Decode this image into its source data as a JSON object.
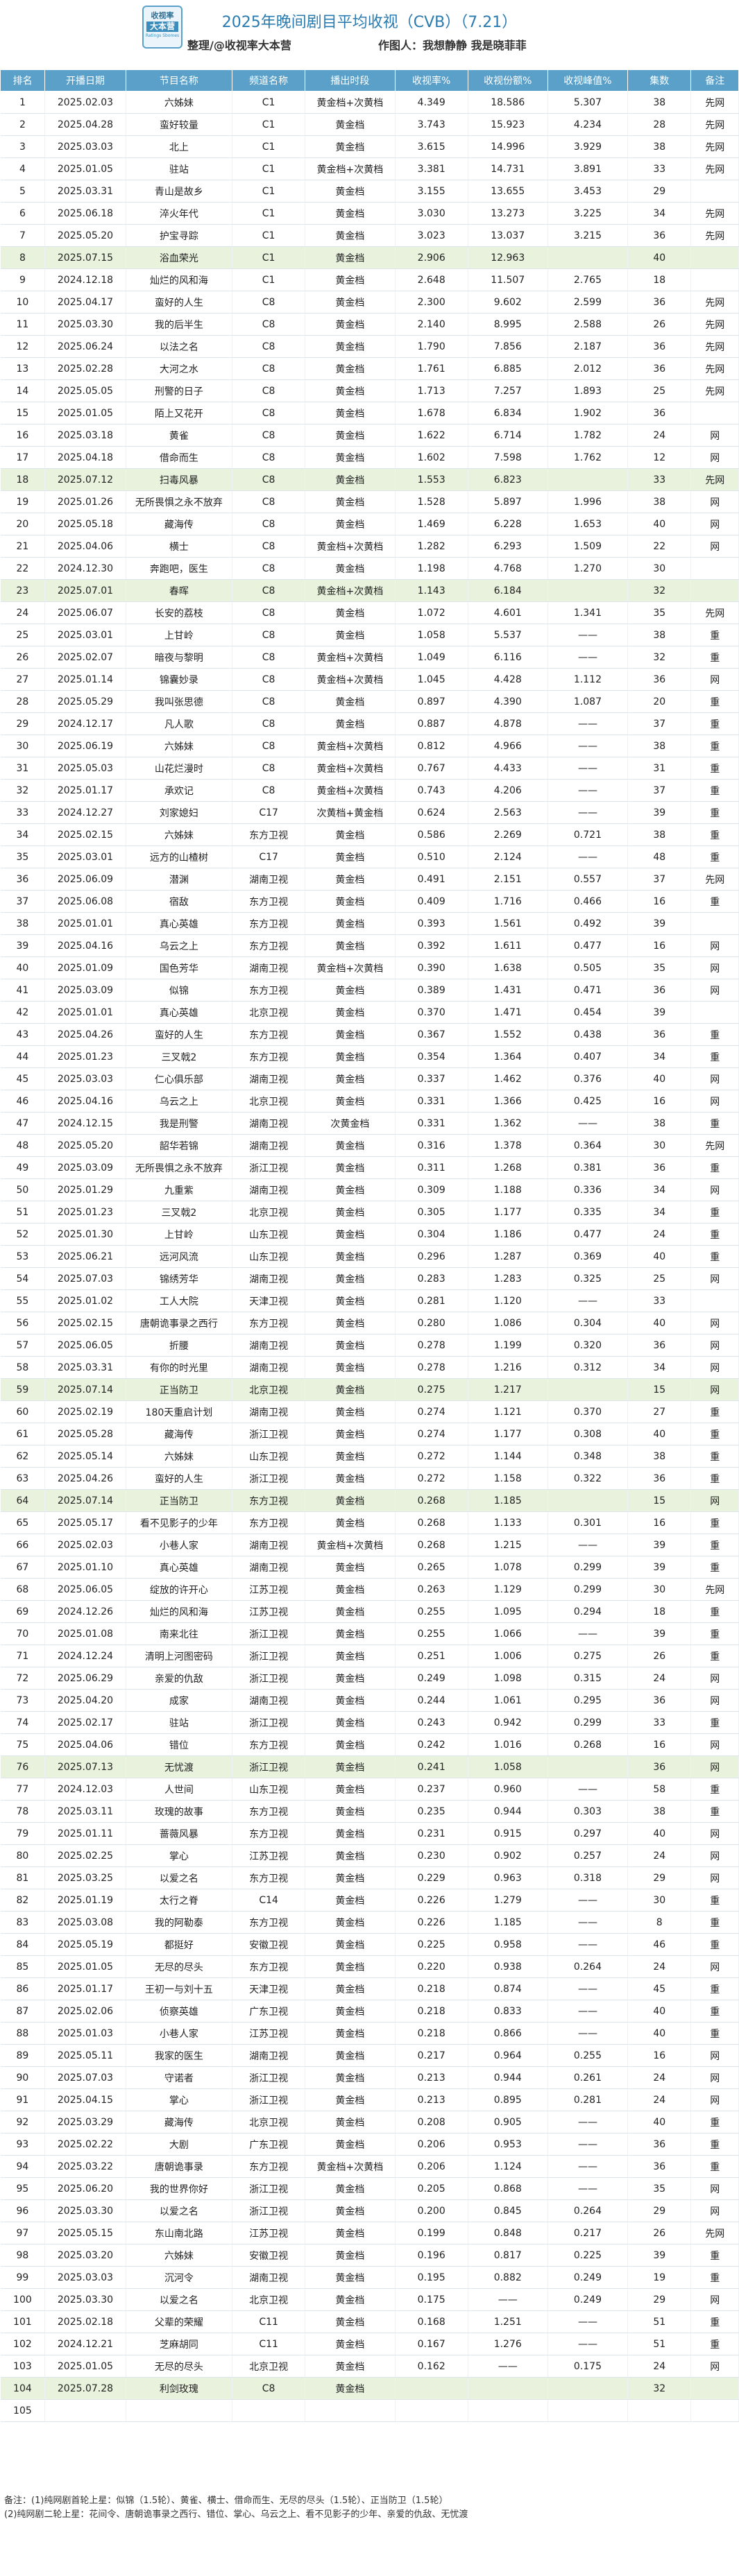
{
  "logo": {
    "line1": "收视率",
    "line2": "大本营",
    "line3": "Ratings Sbomes"
  },
  "header": {
    "title": "2025年晚间剧目平均收视（CVB）（7.21）",
    "compiler": "整理/@收视率大本营",
    "author": "作图人：我想静静  我是晓菲菲"
  },
  "columns": [
    "排名",
    "开播日期",
    "节目名称",
    "频道名称",
    "播出时段",
    "收视率%",
    "收视份额%",
    "收视峰值%",
    "集数",
    "备注"
  ],
  "colors": {
    "header_bg": "#5aa0c8",
    "highlight_row": "#e8f2dc",
    "title": "#2a7bb0"
  },
  "highlight_rows": [
    8,
    18,
    23,
    59,
    64,
    76,
    104
  ],
  "rows": [
    [
      "1",
      "2025.02.03",
      "六姊妹",
      "C1",
      "黄金档+次黄档",
      "4.349",
      "18.586",
      "5.307",
      "38",
      "先网"
    ],
    [
      "2",
      "2025.04.28",
      "蛮好较量",
      "C1",
      "黄金档",
      "3.743",
      "15.923",
      "4.234",
      "28",
      "先网"
    ],
    [
      "3",
      "2025.03.03",
      "北上",
      "C1",
      "黄金档",
      "3.615",
      "14.996",
      "3.929",
      "38",
      "先网"
    ],
    [
      "4",
      "2025.01.05",
      "驻站",
      "C1",
      "黄金档+次黄档",
      "3.381",
      "14.731",
      "3.891",
      "33",
      "先网"
    ],
    [
      "5",
      "2025.03.31",
      "青山是故乡",
      "C1",
      "黄金档",
      "3.155",
      "13.655",
      "3.453",
      "29",
      ""
    ],
    [
      "6",
      "2025.06.18",
      "淬火年代",
      "C1",
      "黄金档",
      "3.030",
      "13.273",
      "3.225",
      "34",
      "先网"
    ],
    [
      "7",
      "2025.05.20",
      "护宝寻踪",
      "C1",
      "黄金档",
      "3.023",
      "13.037",
      "3.215",
      "36",
      "先网"
    ],
    [
      "8",
      "2025.07.15",
      "浴血荣光",
      "C1",
      "黄金档",
      "2.906",
      "12.963",
      "",
      "40",
      ""
    ],
    [
      "9",
      "2024.12.18",
      "灿烂的风和海",
      "C1",
      "黄金档",
      "2.648",
      "11.507",
      "2.765",
      "18",
      ""
    ],
    [
      "10",
      "2025.04.17",
      "蛮好的人生",
      "C8",
      "黄金档",
      "2.300",
      "9.602",
      "2.599",
      "36",
      "先网"
    ],
    [
      "11",
      "2025.03.30",
      "我的后半生",
      "C8",
      "黄金档",
      "2.140",
      "8.995",
      "2.588",
      "26",
      "先网"
    ],
    [
      "12",
      "2025.06.24",
      "以法之名",
      "C8",
      "黄金档",
      "1.790",
      "7.856",
      "2.187",
      "36",
      "先网"
    ],
    [
      "13",
      "2025.02.28",
      "大河之水",
      "C8",
      "黄金档",
      "1.761",
      "6.885",
      "2.012",
      "36",
      "先网"
    ],
    [
      "14",
      "2025.05.05",
      "刑警的日子",
      "C8",
      "黄金档",
      "1.713",
      "7.257",
      "1.893",
      "25",
      "先网"
    ],
    [
      "15",
      "2025.01.05",
      "陌上又花开",
      "C8",
      "黄金档",
      "1.678",
      "6.834",
      "1.902",
      "36",
      ""
    ],
    [
      "16",
      "2025.03.18",
      "黄雀",
      "C8",
      "黄金档",
      "1.622",
      "6.714",
      "1.782",
      "24",
      "网"
    ],
    [
      "17",
      "2025.04.18",
      "借命而生",
      "C8",
      "黄金档",
      "1.602",
      "7.598",
      "1.762",
      "12",
      "网"
    ],
    [
      "18",
      "2025.07.12",
      "扫毒风暴",
      "C8",
      "黄金档",
      "1.553",
      "6.823",
      "",
      "33",
      "先网"
    ],
    [
      "19",
      "2025.01.26",
      "无所畏惧之永不放弃",
      "C8",
      "黄金档",
      "1.528",
      "5.897",
      "1.996",
      "38",
      "网"
    ],
    [
      "20",
      "2025.05.18",
      "藏海传",
      "C8",
      "黄金档",
      "1.469",
      "6.228",
      "1.653",
      "40",
      "网"
    ],
    [
      "21",
      "2025.04.06",
      "横士",
      "C8",
      "黄金档+次黄档",
      "1.282",
      "6.293",
      "1.509",
      "22",
      "网"
    ],
    [
      "22",
      "2024.12.30",
      "奔跑吧，医生",
      "C8",
      "黄金档",
      "1.198",
      "4.768",
      "1.270",
      "30",
      ""
    ],
    [
      "23",
      "2025.07.01",
      "春晖",
      "C8",
      "黄金档+次黄档",
      "1.143",
      "6.184",
      "",
      "32",
      ""
    ],
    [
      "24",
      "2025.06.07",
      "长安的荔枝",
      "C8",
      "黄金档",
      "1.072",
      "4.601",
      "1.341",
      "35",
      "先网"
    ],
    [
      "25",
      "2025.03.01",
      "上甘岭",
      "C8",
      "黄金档",
      "1.058",
      "5.537",
      "——",
      "38",
      "重"
    ],
    [
      "26",
      "2025.02.07",
      "暗夜与黎明",
      "C8",
      "黄金档+次黄档",
      "1.049",
      "6.116",
      "——",
      "32",
      "重"
    ],
    [
      "27",
      "2025.01.14",
      "锦囊妙录",
      "C8",
      "黄金档+次黄档",
      "1.045",
      "4.428",
      "1.112",
      "36",
      "网"
    ],
    [
      "28",
      "2025.05.29",
      "我叫张思德",
      "C8",
      "黄金档",
      "0.897",
      "4.390",
      "1.087",
      "20",
      "重"
    ],
    [
      "29",
      "2024.12.17",
      "凡人歌",
      "C8",
      "黄金档",
      "0.887",
      "4.878",
      "——",
      "37",
      "重"
    ],
    [
      "30",
      "2025.06.19",
      "六姊妹",
      "C8",
      "黄金档+次黄档",
      "0.812",
      "4.966",
      "——",
      "38",
      "重"
    ],
    [
      "31",
      "2025.05.03",
      "山花烂漫时",
      "C8",
      "黄金档+次黄档",
      "0.767",
      "4.433",
      "——",
      "31",
      "重"
    ],
    [
      "32",
      "2025.01.17",
      "承欢记",
      "C8",
      "黄金档+次黄档",
      "0.743",
      "4.206",
      "——",
      "37",
      "重"
    ],
    [
      "33",
      "2024.12.27",
      "刘家媳妇",
      "C17",
      "次黄档+黄金档",
      "0.624",
      "2.563",
      "——",
      "39",
      "重"
    ],
    [
      "34",
      "2025.02.15",
      "六姊妹",
      "东方卫视",
      "黄金档",
      "0.586",
      "2.269",
      "0.721",
      "38",
      "重"
    ],
    [
      "35",
      "2025.03.01",
      "远方的山楂树",
      "C17",
      "黄金档",
      "0.510",
      "2.124",
      "——",
      "48",
      "重"
    ],
    [
      "36",
      "2025.06.09",
      "潜渊",
      "湖南卫视",
      "黄金档",
      "0.491",
      "2.151",
      "0.557",
      "37",
      "先网"
    ],
    [
      "37",
      "2025.06.08",
      "宿敌",
      "东方卫视",
      "黄金档",
      "0.409",
      "1.716",
      "0.466",
      "16",
      "重"
    ],
    [
      "38",
      "2025.01.01",
      "真心英雄",
      "东方卫视",
      "黄金档",
      "0.393",
      "1.561",
      "0.492",
      "39",
      ""
    ],
    [
      "39",
      "2025.04.16",
      "乌云之上",
      "东方卫视",
      "黄金档",
      "0.392",
      "1.611",
      "0.477",
      "16",
      "网"
    ],
    [
      "40",
      "2025.01.09",
      "国色芳华",
      "湖南卫视",
      "黄金档+次黄档",
      "0.390",
      "1.638",
      "0.505",
      "35",
      "网"
    ],
    [
      "41",
      "2025.03.09",
      "似锦",
      "东方卫视",
      "黄金档",
      "0.389",
      "1.431",
      "0.471",
      "36",
      "网"
    ],
    [
      "42",
      "2025.01.01",
      "真心英雄",
      "北京卫视",
      "黄金档",
      "0.370",
      "1.471",
      "0.454",
      "39",
      ""
    ],
    [
      "43",
      "2025.04.26",
      "蛮好的人生",
      "东方卫视",
      "黄金档",
      "0.367",
      "1.552",
      "0.438",
      "36",
      "重"
    ],
    [
      "44",
      "2025.01.23",
      "三叉戟2",
      "东方卫视",
      "黄金档",
      "0.354",
      "1.364",
      "0.407",
      "34",
      "重"
    ],
    [
      "45",
      "2025.03.03",
      "仁心俱乐部",
      "湖南卫视",
      "黄金档",
      "0.337",
      "1.462",
      "0.376",
      "40",
      "网"
    ],
    [
      "46",
      "2025.04.16",
      "乌云之上",
      "北京卫视",
      "黄金档",
      "0.331",
      "1.366",
      "0.425",
      "16",
      "网"
    ],
    [
      "47",
      "2024.12.15",
      "我是刑警",
      "湖南卫视",
      "次黄金档",
      "0.331",
      "1.362",
      "——",
      "38",
      "重"
    ],
    [
      "48",
      "2025.05.20",
      "韶华若锦",
      "湖南卫视",
      "黄金档",
      "0.316",
      "1.378",
      "0.364",
      "30",
      "先网"
    ],
    [
      "49",
      "2025.03.09",
      "无所畏惧之永不放弃",
      "浙江卫视",
      "黄金档",
      "0.311",
      "1.268",
      "0.381",
      "36",
      "重"
    ],
    [
      "50",
      "2025.01.29",
      "九重紫",
      "湖南卫视",
      "黄金档",
      "0.309",
      "1.188",
      "0.336",
      "34",
      "网"
    ],
    [
      "51",
      "2025.01.23",
      "三叉戟2",
      "北京卫视",
      "黄金档",
      "0.305",
      "1.177",
      "0.335",
      "34",
      "重"
    ],
    [
      "52",
      "2025.01.30",
      "上甘岭",
      "山东卫视",
      "黄金档",
      "0.304",
      "1.186",
      "0.477",
      "24",
      "重"
    ],
    [
      "53",
      "2025.06.21",
      "远河风流",
      "山东卫视",
      "黄金档",
      "0.296",
      "1.287",
      "0.369",
      "40",
      "重"
    ],
    [
      "54",
      "2025.07.03",
      "锦绣芳华",
      "湖南卫视",
      "黄金档",
      "0.283",
      "1.283",
      "0.325",
      "25",
      "网"
    ],
    [
      "55",
      "2025.01.02",
      "工人大院",
      "天津卫视",
      "黄金档",
      "0.281",
      "1.120",
      "——",
      "33",
      ""
    ],
    [
      "56",
      "2025.02.15",
      "唐朝诡事录之西行",
      "东方卫视",
      "黄金档",
      "0.280",
      "1.086",
      "0.304",
      "40",
      "网"
    ],
    [
      "57",
      "2025.06.05",
      "折腰",
      "湖南卫视",
      "黄金档",
      "0.278",
      "1.199",
      "0.320",
      "36",
      "网"
    ],
    [
      "58",
      "2025.03.31",
      "有你的时光里",
      "湖南卫视",
      "黄金档",
      "0.278",
      "1.216",
      "0.312",
      "34",
      "网"
    ],
    [
      "59",
      "2025.07.14",
      "正当防卫",
      "北京卫视",
      "黄金档",
      "0.275",
      "1.217",
      "",
      "15",
      "网"
    ],
    [
      "60",
      "2025.02.19",
      "180天重启计划",
      "湖南卫视",
      "黄金档",
      "0.274",
      "1.121",
      "0.370",
      "27",
      "重"
    ],
    [
      "61",
      "2025.05.28",
      "藏海传",
      "浙江卫视",
      "黄金档",
      "0.274",
      "1.177",
      "0.308",
      "40",
      "重"
    ],
    [
      "62",
      "2025.05.14",
      "六姊妹",
      "山东卫视",
      "黄金档",
      "0.272",
      "1.144",
      "0.348",
      "38",
      "重"
    ],
    [
      "63",
      "2025.04.26",
      "蛮好的人生",
      "浙江卫视",
      "黄金档",
      "0.272",
      "1.158",
      "0.322",
      "36",
      "重"
    ],
    [
      "64",
      "2025.07.14",
      "正当防卫",
      "东方卫视",
      "黄金档",
      "0.268",
      "1.185",
      "",
      "15",
      "网"
    ],
    [
      "65",
      "2025.05.17",
      "看不见影子的少年",
      "东方卫视",
      "黄金档",
      "0.268",
      "1.133",
      "0.301",
      "16",
      "重"
    ],
    [
      "66",
      "2025.02.03",
      "小巷人家",
      "湖南卫视",
      "黄金档+次黄档",
      "0.268",
      "1.215",
      "——",
      "39",
      "重"
    ],
    [
      "67",
      "2025.01.10",
      "真心英雄",
      "湖南卫视",
      "黄金档",
      "0.265",
      "1.078",
      "0.299",
      "39",
      "重"
    ],
    [
      "68",
      "2025.06.05",
      "绽放的许开心",
      "江苏卫视",
      "黄金档",
      "0.263",
      "1.129",
      "0.299",
      "30",
      "先网"
    ],
    [
      "69",
      "2024.12.26",
      "灿烂的风和海",
      "江苏卫视",
      "黄金档",
      "0.255",
      "1.095",
      "0.294",
      "18",
      "重"
    ],
    [
      "70",
      "2025.01.08",
      "南来北往",
      "浙江卫视",
      "黄金档",
      "0.255",
      "1.066",
      "——",
      "39",
      "重"
    ],
    [
      "71",
      "2024.12.24",
      "清明上河图密码",
      "浙江卫视",
      "黄金档",
      "0.251",
      "1.006",
      "0.275",
      "26",
      "重"
    ],
    [
      "72",
      "2025.06.29",
      "亲爱的仇敌",
      "浙江卫视",
      "黄金档",
      "0.249",
      "1.098",
      "0.315",
      "24",
      "网"
    ],
    [
      "73",
      "2025.04.20",
      "成家",
      "湖南卫视",
      "黄金档",
      "0.244",
      "1.061",
      "0.295",
      "36",
      "网"
    ],
    [
      "74",
      "2025.02.17",
      "驻站",
      "浙江卫视",
      "黄金档",
      "0.243",
      "0.942",
      "0.299",
      "33",
      "重"
    ],
    [
      "75",
      "2025.04.06",
      "错位",
      "东方卫视",
      "黄金档",
      "0.242",
      "1.016",
      "0.268",
      "16",
      "网"
    ],
    [
      "76",
      "2025.07.13",
      "无忧渡",
      "浙江卫视",
      "黄金档",
      "0.241",
      "1.058",
      "",
      "36",
      "网"
    ],
    [
      "77",
      "2024.12.03",
      "人世间",
      "山东卫视",
      "黄金档",
      "0.237",
      "0.960",
      "——",
      "58",
      "重"
    ],
    [
      "78",
      "2025.03.11",
      "玫瑰的故事",
      "东方卫视",
      "黄金档",
      "0.235",
      "0.944",
      "0.303",
      "38",
      "重"
    ],
    [
      "79",
      "2025.01.11",
      "蔷薇风暴",
      "东方卫视",
      "黄金档",
      "0.231",
      "0.915",
      "0.297",
      "40",
      "网"
    ],
    [
      "80",
      "2025.02.25",
      "掌心",
      "江苏卫视",
      "黄金档",
      "0.230",
      "0.902",
      "0.257",
      "24",
      "网"
    ],
    [
      "81",
      "2025.03.25",
      "以爱之名",
      "东方卫视",
      "黄金档",
      "0.229",
      "0.963",
      "0.318",
      "29",
      "网"
    ],
    [
      "82",
      "2025.01.19",
      "太行之脊",
      "C14",
      "黄金档",
      "0.226",
      "1.279",
      "——",
      "30",
      "重"
    ],
    [
      "83",
      "2025.03.08",
      "我的阿勒泰",
      "东方卫视",
      "黄金档",
      "0.226",
      "1.185",
      "——",
      "8",
      "重"
    ],
    [
      "84",
      "2025.05.19",
      "都挺好",
      "安徽卫视",
      "黄金档",
      "0.225",
      "0.958",
      "——",
      "46",
      "重"
    ],
    [
      "85",
      "2025.01.05",
      "无尽的尽头",
      "东方卫视",
      "黄金档",
      "0.220",
      "0.938",
      "0.264",
      "24",
      "网"
    ],
    [
      "86",
      "2025.01.17",
      "王初一与刘十五",
      "天津卫视",
      "黄金档",
      "0.218",
      "0.874",
      "——",
      "45",
      "重"
    ],
    [
      "87",
      "2025.02.06",
      "侦察英雄",
      "广东卫视",
      "黄金档",
      "0.218",
      "0.833",
      "——",
      "40",
      "重"
    ],
    [
      "88",
      "2025.01.03",
      "小巷人家",
      "江苏卫视",
      "黄金档",
      "0.218",
      "0.866",
      "——",
      "40",
      "重"
    ],
    [
      "89",
      "2025.05.11",
      "我家的医生",
      "湖南卫视",
      "黄金档",
      "0.217",
      "0.964",
      "0.255",
      "16",
      "网"
    ],
    [
      "90",
      "2025.07.03",
      "守诺者",
      "浙江卫视",
      "黄金档",
      "0.213",
      "0.944",
      "0.261",
      "24",
      "网"
    ],
    [
      "91",
      "2025.04.15",
      "掌心",
      "浙江卫视",
      "黄金档",
      "0.213",
      "0.895",
      "0.281",
      "24",
      "网"
    ],
    [
      "92",
      "2025.03.29",
      "藏海传",
      "北京卫视",
      "黄金档",
      "0.208",
      "0.905",
      "——",
      "40",
      "重"
    ],
    [
      "93",
      "2025.02.22",
      "大剧",
      "广东卫视",
      "黄金档",
      "0.206",
      "0.953",
      "——",
      "36",
      "重"
    ],
    [
      "94",
      "2025.03.22",
      "唐朝诡事录",
      "东方卫视",
      "黄金档+次黄档",
      "0.206",
      "1.124",
      "——",
      "36",
      "重"
    ],
    [
      "95",
      "2025.06.20",
      "我的世界你好",
      "浙江卫视",
      "黄金档",
      "0.205",
      "0.868",
      "——",
      "35",
      "网"
    ],
    [
      "96",
      "2025.03.30",
      "以爱之名",
      "浙江卫视",
      "黄金档",
      "0.200",
      "0.845",
      "0.264",
      "29",
      "网"
    ],
    [
      "97",
      "2025.05.15",
      "东山南北路",
      "江苏卫视",
      "黄金档",
      "0.199",
      "0.848",
      "0.217",
      "26",
      "先网"
    ],
    [
      "98",
      "2025.03.20",
      "六姊妹",
      "安徽卫视",
      "黄金档",
      "0.196",
      "0.817",
      "0.225",
      "39",
      "重"
    ],
    [
      "99",
      "2025.03.03",
      "沉河令",
      "湖南卫视",
      "黄金档",
      "0.195",
      "0.882",
      "0.249",
      "19",
      "重"
    ],
    [
      "100",
      "2025.03.30",
      "以爱之名",
      "北京卫视",
      "黄金档",
      "0.175",
      "——",
      "0.249",
      "29",
      "网"
    ],
    [
      "101",
      "2025.02.18",
      "父辈的荣耀",
      "C11",
      "黄金档",
      "0.168",
      "1.251",
      "——",
      "51",
      "重"
    ],
    [
      "102",
      "2024.12.21",
      "芝麻胡同",
      "C11",
      "黄金档",
      "0.167",
      "1.276",
      "——",
      "51",
      "重"
    ],
    [
      "103",
      "2025.01.05",
      "无尽的尽头",
      "北京卫视",
      "黄金档",
      "0.162",
      "——",
      "0.175",
      "24",
      "网"
    ],
    [
      "104",
      "2025.07.28",
      "利剑玫瑰",
      "C8",
      "黄金档",
      "",
      "",
      "",
      "32",
      ""
    ],
    [
      "105",
      "",
      "",
      "",
      "",
      "",
      "",
      "",
      "",
      ""
    ]
  ],
  "notes": [
    "备注：(1)纯网剧首轮上星：似锦（1.5轮）、黄雀、横士、借命而生、无尽的尽头（1.5轮）、正当防卫（1.5轮）",
    "(2)纯网剧二轮上星：花间令、唐朝诡事录之西行、错位、掌心、乌云之上、看不见影子的少年、亲爱的仇敌、无忧渡"
  ]
}
